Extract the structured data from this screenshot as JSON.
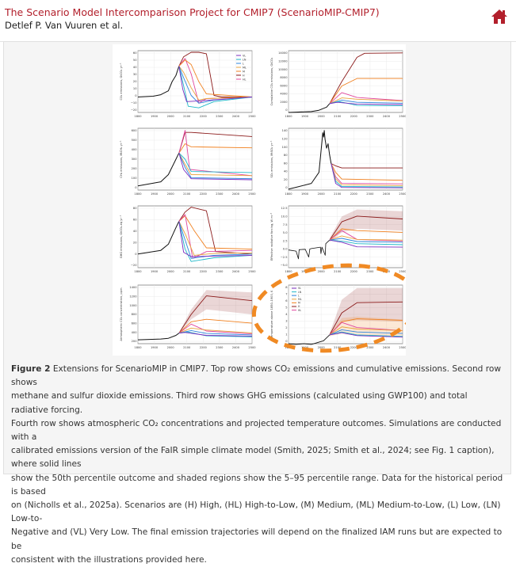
{
  "header": {
    "title": "The Scenario Model Intercomparison Project for CMIP7 (ScenarioMIP-CMIP7)",
    "authors": "Detlef P. Van Vuuren et al.",
    "home_icon": "home-icon",
    "accent": "#b21f2b"
  },
  "figure": {
    "caption_label": "Figure 2",
    "caption_lines": [
      " Extensions for ScenarioMIP in CMIP7. Top row shows CO₂ emissions and cumulative emissions. Second row shows",
      "methane and sulfur dioxide emissions. Third row shows GHG emissions (calculated using GWP100) and total radiative forcing.",
      "Fourth row shows atmospheric CO₂ concentrations and projected temperature outcomes. Simulations are conducted with a",
      "calibrated emissions version of the FaIR simple climate model (Smith, 2025; Smith et al., 2024; see Fig. 1 caption), where solid lines",
      "show the 50th percentile outcome and shaded regions show the 5–95 percentile range. Data for the historical period is based",
      "on (Nicholls et al., 2025a). Scenarios are (H) High, (HL) High-to-Low, (M) Medium, (ML) Medium-to-Low, (L) Low, (LN) Low-to-",
      "Negative and (VL) Very Low. The final emission trajectories will depend on the finalized IAM runs but are expected to be",
      "consistent with the illustrations provided here."
    ],
    "legend_labels": [
      "VL",
      "LN",
      "L",
      "ML",
      "M",
      "H",
      "HL"
    ],
    "scenario_colors": [
      "#7b2cbf",
      "#1fb8c8",
      "#2e86de",
      "#e8a33d",
      "#f07f1d",
      "#8b1a1a",
      "#e0479e"
    ],
    "highlight_color": "#f08a24",
    "panels": [
      {
        "ylabel": "CO₂ emissions, GtCO₂ yr⁻¹",
        "yticks": [
          "60",
          "50",
          "40",
          "30",
          "20",
          "10",
          "0",
          "−10",
          "−20"
        ]
      },
      {
        "ylabel": "Cumulative CO₂ emissions, GtCO₂",
        "yticks": [
          "14000",
          "12000",
          "10000",
          "8000",
          "6000",
          "4000",
          "2000",
          "0"
        ]
      },
      {
        "ylabel": "CH₄ emissions, MtCH₄ yr⁻¹",
        "yticks": [
          "600",
          "500",
          "400",
          "300",
          "200",
          "100",
          "0"
        ]
      },
      {
        "ylabel": "SO₂ emissions, MtSO₂ yr⁻¹",
        "yticks": [
          "140",
          "120",
          "100",
          "80",
          "60",
          "40",
          "20",
          "0"
        ]
      },
      {
        "ylabel": "GHG emissions, GtCO₂-eq yr⁻¹",
        "yticks": [
          "80",
          "60",
          "40",
          "20",
          "0",
          "−20"
        ]
      },
      {
        "ylabel": "Effective radiative forcing, W m⁻²",
        "yticks": [
          "12.5",
          "10.0",
          "7.5",
          "5.0",
          "2.5",
          "0.0",
          "−2.5",
          "−5.0"
        ]
      },
      {
        "ylabel": "Atmospheric CO₂ concentration, ppm",
        "yticks": [
          "1400",
          "1200",
          "1000",
          "800",
          "600",
          "400",
          "200"
        ]
      },
      {
        "ylabel": "Temperature above 1850–1900, K",
        "yticks": [
          "8",
          "7",
          "6",
          "5",
          "4",
          "3",
          "2",
          "1",
          "0"
        ]
      }
    ],
    "xticks": [
      "1800",
      "1900",
      "2000",
      "2100",
      "2200",
      "2300",
      "2400",
      "2500"
    ]
  }
}
